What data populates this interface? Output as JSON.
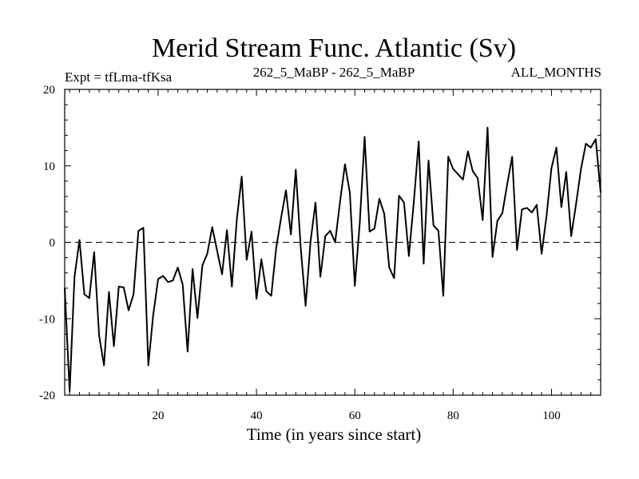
{
  "chart_data": {
    "type": "line",
    "title": "Merid Stream Func. Atlantic (Sv)",
    "subtitle_left": "Expt = tfLma-tfKsa",
    "subtitle_center": "262_5_MaBP - 262_5_MaBP",
    "subtitle_right": "ALL_MONTHS",
    "xlabel": "Time (in years since start)",
    "ylabel": "",
    "xlim": [
      1,
      110
    ],
    "ylim": [
      -20,
      20
    ],
    "xticks": [
      20,
      40,
      60,
      80,
      100
    ],
    "xtick_labels": [
      "20",
      "40",
      "60",
      "80",
      "100"
    ],
    "yticks": [
      -20,
      -10,
      0,
      10,
      20
    ],
    "ytick_labels": [
      "-20",
      "-10",
      "0",
      "10",
      "20"
    ],
    "reference_line": {
      "y": 0,
      "style": "dashed"
    },
    "series": [
      {
        "name": "tfLma-tfKsa",
        "x": [
          1,
          2,
          3,
          4,
          5,
          6,
          7,
          8,
          9,
          10,
          11,
          12,
          13,
          14,
          15,
          16,
          17,
          18,
          19,
          20,
          21,
          22,
          23,
          24,
          25,
          26,
          27,
          28,
          29,
          30,
          31,
          32,
          33,
          34,
          35,
          36,
          37,
          38,
          39,
          40,
          41,
          42,
          43,
          44,
          45,
          46,
          47,
          48,
          49,
          50,
          51,
          52,
          53,
          54,
          55,
          56,
          57,
          58,
          59,
          60,
          61,
          62,
          63,
          64,
          65,
          66,
          67,
          68,
          69,
          70,
          71,
          72,
          73,
          74,
          75,
          76,
          77,
          78,
          79,
          80,
          81,
          82,
          83,
          84,
          85,
          86,
          87,
          88,
          89,
          90,
          91,
          92,
          93,
          94,
          95,
          96,
          97,
          98,
          99,
          100,
          101,
          102,
          103,
          104,
          105,
          106,
          107,
          108,
          109,
          110
        ],
        "y": [
          -6.0,
          -19.5,
          -4.5,
          0.3,
          -6.8,
          -7.3,
          -1.3,
          -12.2,
          -16.1,
          -6.5,
          -13.6,
          -5.8,
          -5.9,
          -8.9,
          -6.8,
          1.5,
          1.9,
          -16.1,
          -9.5,
          -4.8,
          -4.4,
          -5.2,
          -5.0,
          -3.3,
          -5.5,
          -14.3,
          -3.5,
          -9.9,
          -3.0,
          -1.5,
          2.0,
          -1.1,
          -4.2,
          1.6,
          -5.8,
          3.0,
          8.6,
          -2.3,
          1.4,
          -7.4,
          -2.2,
          -6.4,
          -7.0,
          -0.8,
          3.2,
          6.8,
          1.0,
          9.5,
          -0.7,
          -8.3,
          0.1,
          5.2,
          -4.5,
          0.8,
          1.5,
          0.0,
          5.3,
          10.2,
          6.5,
          -5.7,
          2.5,
          13.8,
          1.4,
          1.8,
          5.7,
          3.7,
          -3.3,
          -4.7,
          6.1,
          5.2,
          -1.8,
          5.3,
          13.2,
          -2.8,
          10.7,
          2.2,
          1.5,
          -7.0,
          11.2,
          9.6,
          8.9,
          8.2,
          11.9,
          9.3,
          8.4,
          2.9,
          15.0,
          -1.9,
          2.8,
          3.8,
          7.6,
          11.2,
          -1.0,
          4.3,
          4.5,
          3.9,
          4.9,
          -1.5,
          3.5,
          9.7,
          12.4,
          4.6,
          9.2,
          0.8,
          5.0,
          9.6,
          12.9,
          12.4,
          13.5,
          6.5
        ]
      }
    ]
  }
}
